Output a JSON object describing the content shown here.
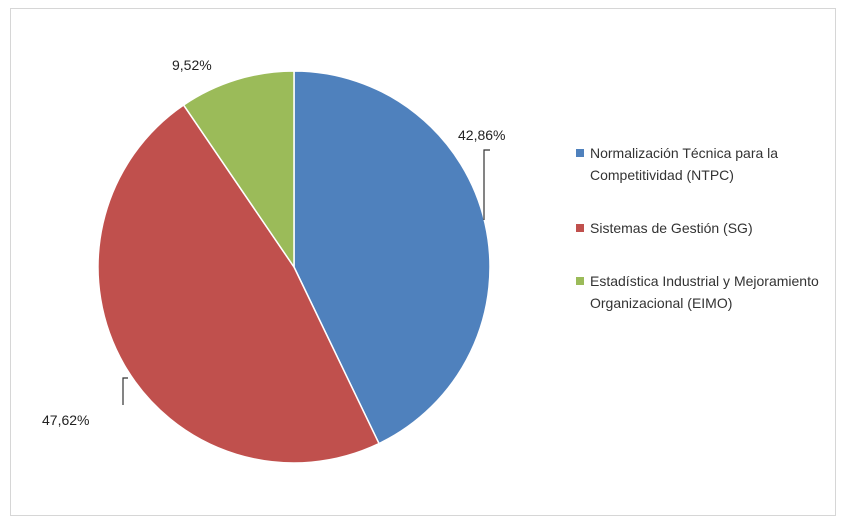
{
  "chart_data": {
    "type": "pie",
    "title": "",
    "start_angle_deg": 0,
    "direction": "clockwise",
    "legend_position": "right",
    "slices": [
      {
        "name": "Normalización Técnica para la Competitividad (NTPC)",
        "value": 42.86,
        "label": "42,86%",
        "color": "#4f81bd"
      },
      {
        "name": "Sistemas de Gestión (SG)",
        "value": 47.62,
        "label": "47,62%",
        "color": "#c0504d"
      },
      {
        "name": "Estadística Industrial y Mejoramiento Organizacional (EIMO)",
        "value": 9.52,
        "label": "9,52%",
        "color": "#9bbb59"
      }
    ]
  }
}
